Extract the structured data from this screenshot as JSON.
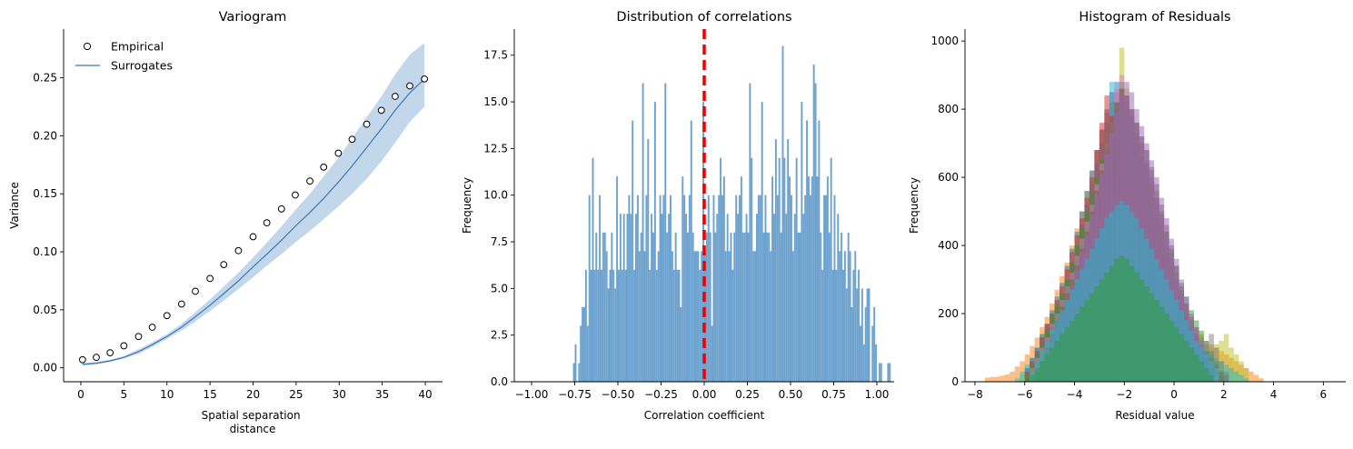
{
  "chart_data": [
    {
      "type": "scatter",
      "title": "Variogram",
      "xlabel": "Spatial separation\ndistance",
      "ylabel": "Variance",
      "xlim": [
        -2,
        42
      ],
      "ylim": [
        -0.012,
        0.292
      ],
      "xticks": [
        0,
        5,
        10,
        15,
        20,
        25,
        30,
        35,
        40
      ],
      "yticks": [
        0.0,
        0.05,
        0.1,
        0.15,
        0.2,
        0.25
      ],
      "ytick_labels": [
        "0.00",
        "0.05",
        "0.10",
        "0.15",
        "0.20",
        "0.25"
      ],
      "legend_position": "top-left",
      "series": [
        {
          "name": "Empirical",
          "kind": "scatter",
          "color": "#000000",
          "x": [
            0.2,
            1.8,
            3.4,
            5.0,
            6.7,
            8.3,
            10.0,
            11.7,
            13.3,
            15.0,
            16.6,
            18.3,
            20.0,
            21.6,
            23.3,
            24.9,
            26.6,
            28.2,
            29.9,
            31.5,
            33.2,
            34.9,
            36.5,
            38.2,
            39.9
          ],
          "y": [
            0.007,
            0.009,
            0.013,
            0.019,
            0.027,
            0.035,
            0.045,
            0.055,
            0.066,
            0.077,
            0.089,
            0.101,
            0.113,
            0.125,
            0.137,
            0.149,
            0.161,
            0.173,
            0.185,
            0.197,
            0.21,
            0.222,
            0.234,
            0.243,
            0.249
          ]
        },
        {
          "name": "Surrogates",
          "kind": "line",
          "color": "#3a7ab8",
          "band_color": "#c3d7eb",
          "x": [
            0.2,
            1.8,
            3.4,
            5.0,
            6.7,
            8.3,
            10.0,
            11.7,
            13.3,
            15.0,
            16.6,
            18.3,
            20.0,
            21.6,
            23.3,
            24.9,
            26.6,
            28.2,
            29.9,
            31.5,
            33.2,
            34.9,
            36.5,
            38.2,
            39.9
          ],
          "y": [
            0.003,
            0.004,
            0.006,
            0.009,
            0.014,
            0.02,
            0.027,
            0.035,
            0.044,
            0.054,
            0.064,
            0.075,
            0.087,
            0.098,
            0.11,
            0.122,
            0.134,
            0.146,
            0.16,
            0.174,
            0.19,
            0.206,
            0.222,
            0.237,
            0.249
          ],
          "band_low": [
            0.002,
            0.003,
            0.005,
            0.008,
            0.012,
            0.018,
            0.025,
            0.032,
            0.04,
            0.049,
            0.058,
            0.068,
            0.078,
            0.088,
            0.098,
            0.108,
            0.118,
            0.128,
            0.139,
            0.15,
            0.163,
            0.178,
            0.194,
            0.212,
            0.225
          ],
          "band_high": [
            0.004,
            0.005,
            0.007,
            0.01,
            0.016,
            0.022,
            0.029,
            0.038,
            0.048,
            0.059,
            0.07,
            0.082,
            0.095,
            0.108,
            0.122,
            0.136,
            0.15,
            0.165,
            0.181,
            0.198,
            0.216,
            0.234,
            0.253,
            0.27,
            0.28
          ]
        }
      ]
    },
    {
      "type": "bar",
      "title": "Distribution of correlations",
      "xlabel": "Correlation coefficient",
      "ylabel": "Frequency",
      "xlim": [
        -1.1,
        1.1
      ],
      "ylim": [
        0,
        18.9
      ],
      "xticks": [
        -1.0,
        -0.75,
        -0.5,
        -0.25,
        0.0,
        0.25,
        0.5,
        0.75,
        1.0
      ],
      "xtick_labels": [
        "−1.00",
        "−0.75",
        "−0.50",
        "−0.25",
        "0.00",
        "0.25",
        "0.50",
        "0.75",
        "1.00"
      ],
      "yticks": [
        0.0,
        2.5,
        5.0,
        7.5,
        10.0,
        12.5,
        15.0,
        17.5
      ],
      "ytick_labels": [
        "0.0",
        "2.5",
        "5.0",
        "7.5",
        "10.0",
        "12.5",
        "15.0",
        "17.5"
      ],
      "bar_color": "#6fa3cf",
      "vline": {
        "x": 0.0,
        "color": "#ee0000",
        "style": "dashed"
      },
      "bin_start": -0.76,
      "bin_width": 0.01,
      "values": [
        1,
        2,
        0,
        1,
        3,
        4,
        4,
        6,
        3,
        10,
        6,
        12,
        6,
        8,
        6,
        10,
        6,
        8,
        8,
        7,
        5,
        6,
        8,
        6,
        5,
        11,
        6,
        9,
        6,
        9,
        6,
        9,
        10,
        9,
        14,
        6,
        9,
        10,
        7,
        8,
        16,
        7,
        10,
        13,
        6,
        9,
        8,
        15,
        6,
        7,
        10,
        9,
        10,
        16,
        8,
        9,
        10,
        7,
        6,
        8,
        6,
        6,
        4,
        11,
        10,
        9,
        8,
        10,
        14,
        8,
        7,
        7,
        7,
        6,
        7,
        15,
        7,
        8,
        10,
        8,
        3,
        10,
        8,
        9,
        10,
        12,
        10,
        11,
        7,
        9,
        7,
        8,
        6,
        8,
        10,
        9,
        10,
        11,
        8,
        8,
        9,
        8,
        16,
        12,
        7,
        7,
        9,
        10,
        10,
        15,
        8,
        10,
        8,
        8,
        7,
        11,
        9,
        13,
        10,
        12,
        8,
        18,
        12,
        9,
        13,
        11,
        10,
        7,
        9,
        12,
        8,
        8,
        15,
        9,
        10,
        14,
        11,
        10,
        11,
        17,
        16,
        11,
        14,
        8,
        6,
        10,
        10,
        11,
        8,
        12,
        6,
        10,
        6,
        9,
        7,
        8,
        6,
        7,
        5,
        8,
        7,
        4,
        6,
        7,
        5,
        6,
        3,
        5,
        2,
        4,
        5,
        5,
        0,
        3,
        4,
        2,
        0,
        1,
        1,
        0,
        0,
        0,
        1,
        1
      ]
    },
    {
      "type": "bar",
      "title": "Histogram of Residuals",
      "xlabel": "Residual value",
      "ylabel": "Frequency",
      "xlim": [
        -8.4,
        6.9
      ],
      "ylim": [
        0,
        1035
      ],
      "xticks": [
        -8,
        -6,
        -4,
        -2,
        0,
        2,
        4,
        6
      ],
      "xtick_labels": [
        "−8",
        "−6",
        "−4",
        "−2",
        "0",
        "2",
        "4",
        "6"
      ],
      "yticks": [
        0,
        200,
        400,
        600,
        800,
        1000
      ],
      "ytick_labels": [
        "0",
        "200",
        "400",
        "600",
        "800",
        "1000"
      ],
      "bin_width": 0.2,
      "overlay_alpha": 0.5,
      "series": [
        {
          "color": "#ff7f0e",
          "start": -7.6,
          "values": [
            12,
            14,
            15,
            18,
            22,
            30,
            45,
            60,
            80,
            105,
            130,
            160,
            190,
            230,
            270,
            310,
            350,
            400,
            450,
            500,
            560,
            620,
            680,
            740,
            790,
            820,
            850,
            860,
            840,
            800,
            760,
            700,
            640,
            580,
            520,
            460,
            400,
            350,
            300,
            260,
            220,
            190,
            160,
            140,
            120,
            110,
            100,
            90,
            80,
            70,
            60,
            50,
            40,
            30,
            20,
            10
          ]
        },
        {
          "color": "#bcbd22",
          "start": -6.2,
          "values": [
            20,
            40,
            60,
            90,
            140,
            150,
            170,
            220,
            260,
            300,
            330,
            380,
            460,
            520,
            560,
            600,
            640,
            680,
            780,
            820,
            980,
            860,
            780,
            760,
            660,
            640,
            580,
            520,
            440,
            380,
            330,
            280,
            240,
            200,
            160,
            120,
            100,
            80,
            100,
            110,
            120,
            140,
            100,
            80,
            60,
            40
          ]
        },
        {
          "color": "#17becf",
          "start": -6.4,
          "values": [
            10,
            30,
            50,
            70,
            100,
            130,
            160,
            190,
            220,
            260,
            300,
            350,
            400,
            460,
            520,
            580,
            640,
            700,
            760,
            880,
            820,
            780,
            740,
            700,
            660,
            620,
            560,
            500,
            450,
            400,
            350,
            300,
            260,
            220,
            180,
            150,
            120,
            100,
            90,
            80,
            70,
            60,
            50,
            40,
            30,
            20,
            10
          ]
        },
        {
          "color": "#1f77b4",
          "start": -6.0,
          "values": [
            40,
            70,
            100,
            140,
            170,
            210,
            250,
            290,
            340,
            390,
            440,
            500,
            560,
            620,
            680,
            740,
            800,
            850,
            880,
            860,
            820,
            780,
            720,
            660,
            600,
            540,
            480,
            420,
            360,
            300,
            250,
            210,
            180,
            150,
            130,
            110,
            90,
            70,
            50,
            30,
            20
          ]
        },
        {
          "color": "#d62728",
          "start": -6.0,
          "values": [
            30,
            60,
            90,
            130,
            170,
            200,
            240,
            280,
            330,
            380,
            430,
            480,
            540,
            600,
            680,
            760,
            840,
            780,
            720,
            680,
            640,
            600,
            560,
            520,
            480,
            440,
            400,
            360,
            320,
            280,
            240,
            200,
            170,
            140,
            120,
            100,
            80,
            60,
            40,
            20
          ]
        },
        {
          "color": "#2ca02c",
          "start": -6.0,
          "values": [
            20,
            50,
            80,
            110,
            150,
            200,
            230,
            260,
            300,
            350,
            400,
            450,
            500,
            550,
            600,
            650,
            700,
            760,
            800,
            820,
            800,
            770,
            730,
            690,
            640,
            590,
            540,
            490,
            440,
            390,
            340,
            290,
            250,
            210,
            180,
            150,
            120,
            90,
            60,
            30
          ]
        },
        {
          "color": "#e377c2",
          "start": -5.8,
          "values": [
            40,
            70,
            100,
            130,
            170,
            200,
            240,
            280,
            320,
            370,
            420,
            470,
            520,
            580,
            640,
            700,
            760,
            860,
            900,
            820,
            780,
            740,
            700,
            650,
            600,
            540,
            480,
            420,
            360,
            300,
            250,
            200,
            160,
            130,
            100,
            80,
            60,
            40
          ]
        },
        {
          "color": "#7f7f7f",
          "start": -5.8,
          "values": [
            30,
            60,
            90,
            120,
            160,
            200,
            240,
            280,
            320,
            360,
            400,
            450,
            500,
            560,
            620,
            680,
            740,
            820,
            880,
            840,
            800,
            760,
            720,
            680,
            620,
            560,
            500,
            440,
            380,
            320,
            270,
            230,
            190,
            160,
            130,
            110,
            140,
            100,
            60,
            30
          ]
        },
        {
          "color": "#8c564b",
          "start": -5.6,
          "values": [
            30,
            60,
            100,
            140,
            180,
            220,
            260,
            300,
            340,
            390,
            440,
            500,
            560,
            620,
            700,
            760,
            820,
            860,
            840,
            800,
            760,
            720,
            680,
            630,
            580,
            520,
            460,
            400,
            340,
            280,
            230,
            180,
            140,
            100,
            70,
            40
          ]
        },
        {
          "color": "#9467bd",
          "start": -5.6,
          "values": [
            20,
            50,
            80,
            120,
            160,
            200,
            240,
            280,
            330,
            380,
            430,
            490,
            550,
            610,
            670,
            730,
            790,
            840,
            880,
            850,
            800,
            750,
            700,
            650,
            600,
            540,
            480,
            420,
            360,
            300,
            250,
            200,
            160,
            120,
            80,
            40
          ]
        },
        {
          "color": "#17becf",
          "start": -5.8,
          "values": [
            30,
            60,
            90,
            120,
            150,
            180,
            210,
            240,
            270,
            300,
            330,
            360,
            390,
            420,
            450,
            480,
            500,
            520,
            530,
            520,
            500,
            480,
            450,
            420,
            390,
            360,
            330,
            300,
            270,
            240,
            210,
            180,
            150,
            120,
            100,
            80,
            60,
            40
          ]
        },
        {
          "color": "#2ca02c",
          "start": -5.8,
          "values": [
            20,
            40,
            60,
            80,
            100,
            120,
            140,
            160,
            180,
            200,
            220,
            240,
            260,
            280,
            300,
            320,
            340,
            360,
            370,
            360,
            340,
            320,
            300,
            280,
            260,
            240,
            220,
            200,
            180,
            160,
            140,
            120,
            100,
            80,
            60,
            40,
            20
          ]
        }
      ]
    }
  ]
}
